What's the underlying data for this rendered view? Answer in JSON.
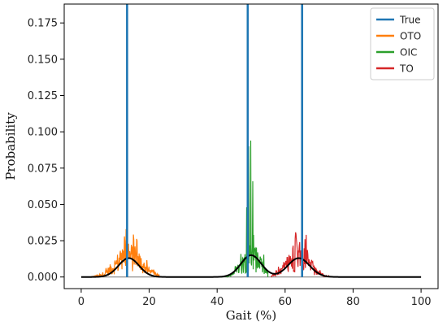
{
  "chart_data": {
    "type": "line",
    "xlabel": "Gait (%)",
    "ylabel": "Probability",
    "xlim": [
      -5,
      105
    ],
    "ylim": [
      -0.008,
      0.188
    ],
    "x_ticks": [
      0,
      20,
      40,
      60,
      80,
      100
    ],
    "x_tick_labels": [
      "0",
      "20",
      "40",
      "60",
      "80",
      "100"
    ],
    "y_ticks": [
      0.0,
      0.025,
      0.05,
      0.075,
      0.1,
      0.125,
      0.15,
      0.175
    ],
    "y_tick_labels": [
      "0.000",
      "0.025",
      "0.050",
      "0.075",
      "0.100",
      "0.125",
      "0.150",
      "0.175"
    ],
    "legend": {
      "position": "top-right",
      "entries": [
        {
          "label": "True",
          "color": "#1f77b4"
        },
        {
          "label": "OTO",
          "color": "#ff7f0e"
        },
        {
          "label": "OIC",
          "color": "#2ca02c"
        },
        {
          "label": "TO",
          "color": "#d62728"
        }
      ]
    },
    "true_lines": {
      "color": "#1f77b4",
      "x": [
        13.5,
        49,
        65
      ]
    },
    "histograms": [
      {
        "name": "OTO",
        "color": "#ff7f0e",
        "center": 14,
        "range": [
          3,
          23
        ],
        "peak_values": [
          [
            13.2,
            0.033
          ],
          [
            12.7,
            0.028
          ],
          [
            15.8,
            0.021
          ],
          [
            11.5,
            0.018
          ]
        ]
      },
      {
        "name": "OIC",
        "color": "#2ca02c",
        "center": 50,
        "range": [
          41,
          55
        ],
        "peak_values": [
          [
            49.9,
            0.094
          ],
          [
            49.3,
            0.09
          ],
          [
            50.5,
            0.066
          ],
          [
            48.7,
            0.048
          ]
        ]
      },
      {
        "name": "TO",
        "color": "#d62728",
        "center": 64,
        "range": [
          56,
          73
        ],
        "peak_values": [
          [
            66.2,
            0.029
          ],
          [
            65.8,
            0.026
          ],
          [
            63.4,
            0.023
          ],
          [
            64.3,
            0.024
          ]
        ]
      }
    ],
    "fit_curve": {
      "color": "#000000",
      "components": [
        {
          "mean": 14,
          "sd": 3.0,
          "peak": 0.013
        },
        {
          "mean": 50,
          "sd": 3.0,
          "peak": 0.015
        },
        {
          "mean": 64,
          "sd": 3.2,
          "peak": 0.013
        }
      ]
    }
  }
}
